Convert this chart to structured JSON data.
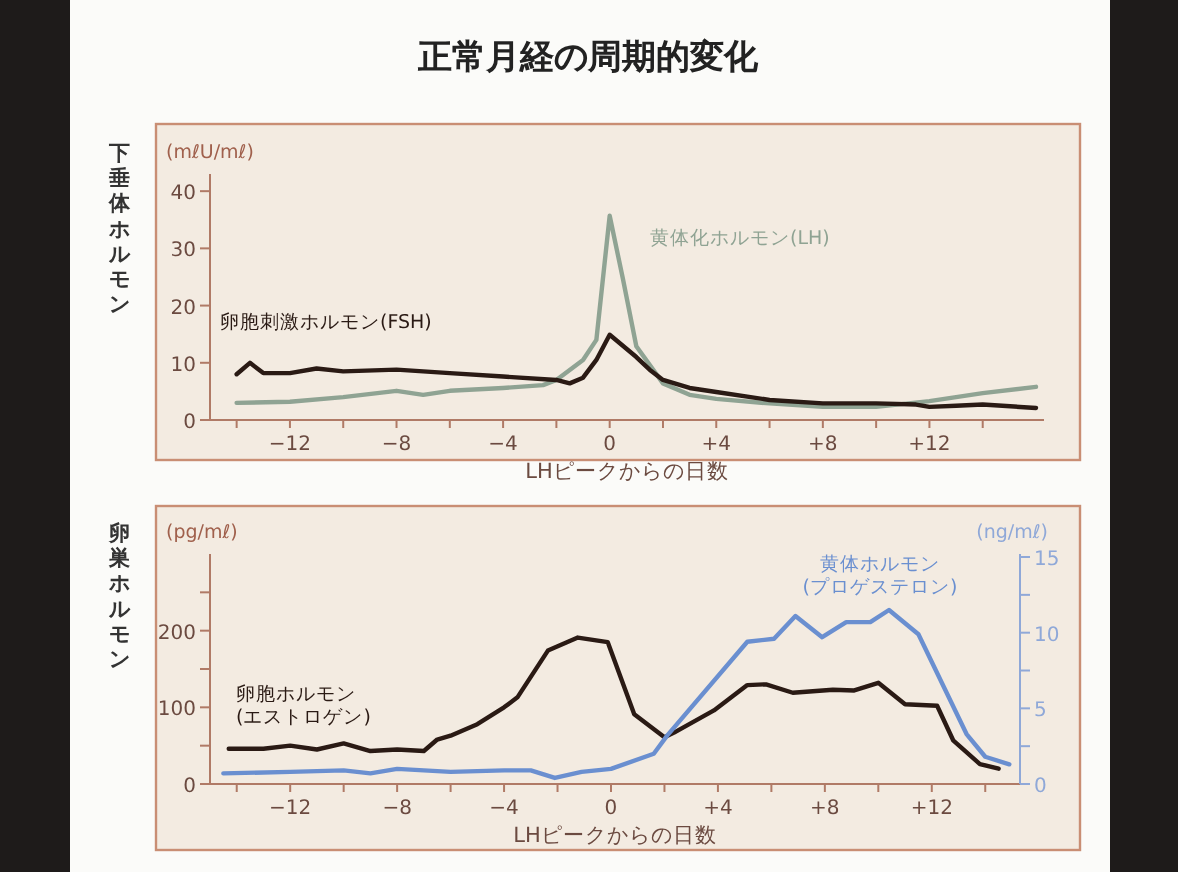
{
  "chart_data": [
    {
      "type": "line",
      "title": "正常月経の周期的変化",
      "xlabel": "LHピークからの日数",
      "ylabel": "(mℓU/mℓ)",
      "annotations": [
        "下垂体ホルモン"
      ],
      "xlim": [
        -15,
        16.3
      ],
      "ylim": [
        0,
        43
      ],
      "xticks": [
        {
          "value": -14,
          "label": null
        },
        {
          "value": -12,
          "label": "−12"
        },
        {
          "value": -10,
          "label": null
        },
        {
          "value": -8,
          "label": "−8"
        },
        {
          "value": -6,
          "label": null
        },
        {
          "value": -4,
          "label": "−4"
        },
        {
          "value": -2,
          "label": null
        },
        0,
        {
          "value": 2,
          "label": null
        },
        {
          "value": 4,
          "label": "+4"
        },
        {
          "value": 6,
          "label": null
        },
        {
          "value": 8,
          "label": "+8"
        },
        {
          "value": 10,
          "label": null
        },
        {
          "value": 12,
          "label": "+12"
        },
        {
          "value": 14,
          "label": null
        }
      ],
      "yticks": [
        0,
        10,
        20,
        30,
        40
      ],
      "grid": false,
      "legend": false,
      "marker": "none",
      "line_style": "solid",
      "series": [
        {
          "name": "黄体化ホルモン(LH)",
          "color": "#8fa393",
          "x": [
            -14,
            -12,
            -10,
            -8,
            -7,
            -6,
            -4,
            -2.5,
            -2,
            -1,
            -0.5,
            0,
            0.5,
            1,
            2,
            3,
            4,
            6,
            8,
            10,
            12,
            14,
            16
          ],
          "values": [
            3,
            3.2,
            4,
            5.1,
            4.4,
            5.1,
            5.6,
            6.1,
            7,
            10.5,
            14,
            35.7,
            24.6,
            12.9,
            6.4,
            4.4,
            3.7,
            2.9,
            2.3,
            2.3,
            3.3,
            4.7,
            5.8
          ]
        },
        {
          "name": "卵胞刺激ホルモン(FSH)",
          "color": "#2a1a14",
          "x": [
            -14,
            -13.5,
            -13,
            -12,
            -11,
            -10,
            -8,
            -6,
            -4,
            -2,
            -1.5,
            -1,
            -0.5,
            0,
            1,
            1.5,
            2,
            3,
            4,
            6,
            8,
            10,
            11.5,
            12,
            13,
            14,
            16
          ],
          "values": [
            8,
            10,
            8.2,
            8.2,
            9,
            8.5,
            8.8,
            8.2,
            7.6,
            7,
            6.4,
            7.4,
            10.5,
            14.9,
            11,
            8.8,
            7,
            5.6,
            4.9,
            3.5,
            2.9,
            2.9,
            2.7,
            2.3,
            2.5,
            2.7,
            2.1
          ]
        }
      ]
    },
    {
      "type": "line",
      "xlabel": "LHピークからの日数",
      "ylabel": "(pg/mℓ)",
      "y2label": "(ng/mℓ)",
      "annotations": [
        "卵巣ホルモン"
      ],
      "xlim": [
        -15,
        15.3
      ],
      "ylim": [
        0,
        300
      ],
      "y2lim": [
        0,
        15.2
      ],
      "xticks": [
        {
          "value": -14,
          "label": null
        },
        {
          "value": -12,
          "label": "−12"
        },
        {
          "value": -10,
          "label": null
        },
        {
          "value": -8,
          "label": "−8"
        },
        {
          "value": -6,
          "label": null
        },
        {
          "value": -4,
          "label": "−4"
        },
        {
          "value": -2,
          "label": null
        },
        0,
        {
          "value": 2,
          "label": null
        },
        {
          "value": 4,
          "label": "+4"
        },
        {
          "value": 6,
          "label": null
        },
        {
          "value": 8,
          "label": "+8"
        },
        {
          "value": 10,
          "label": null
        },
        {
          "value": 12,
          "label": "+12"
        },
        {
          "value": 14,
          "label": null
        }
      ],
      "yticks": [
        0,
        {
          "value": 50,
          "label": null
        },
        100,
        {
          "value": 150,
          "label": null
        },
        200,
        {
          "value": 250,
          "label": null
        }
      ],
      "y2ticks": [
        0,
        {
          "value": 2.5,
          "label": null
        },
        5,
        {
          "value": 7.5,
          "label": null
        },
        10,
        {
          "value": 12.5,
          "label": null
        },
        15
      ],
      "grid": false,
      "legend": false,
      "marker": "none",
      "line_style": "solid",
      "series": [
        {
          "name": "卵胞ホルモン\n(エストロゲン)",
          "color": "#2a1a14",
          "x": [
            -14.3,
            -13,
            -12,
            -11,
            -10,
            -9,
            -8,
            -7,
            -6.5,
            -6,
            -5,
            -4,
            -3.5,
            -2.36,
            -1.24,
            -0.12,
            0.87,
            2,
            2.36,
            3.85,
            5.1,
            5.8,
            6.8,
            8.3,
            9.1,
            10,
            11,
            12.2,
            12.8,
            13.8,
            14.5
          ],
          "values": [
            46,
            46,
            50,
            45,
            53,
            43,
            45,
            43,
            58,
            63,
            78,
            100,
            113,
            174,
            191,
            185,
            91,
            61,
            67,
            96,
            129,
            130,
            119,
            123,
            122,
            132,
            104,
            102,
            57,
            26,
            20
          ]
        },
        {
          "name": "黄体ホルモン\n(プロゲステロン)",
          "color": "#6a8fd0",
          "axis": "y2",
          "x": [
            -14.5,
            -12,
            -10,
            -9,
            -8,
            -6,
            -4,
            -3,
            -2.1,
            -1.1,
            0,
            1.6,
            2.1,
            5.1,
            6.1,
            6.9,
            7.9,
            8.8,
            9.7,
            10.4,
            11.5,
            13.3,
            14,
            14.9
          ],
          "values": [
            0.7,
            0.8,
            0.9,
            0.7,
            1.0,
            0.8,
            0.9,
            0.9,
            0.4,
            0.8,
            1.0,
            2.0,
            3.2,
            9.4,
            9.6,
            11.1,
            9.7,
            10.7,
            10.7,
            11.5,
            9.9,
            3.3,
            1.8,
            1.3
          ]
        }
      ]
    }
  ]
}
